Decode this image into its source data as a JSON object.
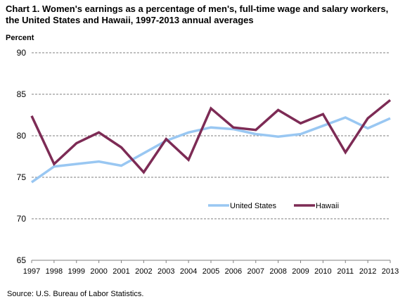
{
  "chart_data": {
    "type": "line",
    "title": "Chart 1. Women's earnings as a percentage of men's, full-time wage and salary workers, the United States and Hawaii, 1997-2013  annual averages",
    "ylabel": "Percent",
    "xlabel": "",
    "ylim": [
      65,
      90
    ],
    "yticks": [
      65,
      70,
      75,
      80,
      85,
      90
    ],
    "grid": true,
    "legend_position": "lower-right",
    "categories": [
      "1997",
      "1998",
      "1999",
      "2000",
      "2001",
      "2002",
      "2003",
      "2004",
      "2005",
      "2006",
      "2007",
      "2008",
      "2009",
      "2010",
      "2011",
      "2012",
      "2013"
    ],
    "series": [
      {
        "name": "United States",
        "color": "#99c7f2",
        "values": [
          74.4,
          76.3,
          76.6,
          76.9,
          76.4,
          77.9,
          79.4,
          80.4,
          81.0,
          80.8,
          80.2,
          79.9,
          80.2,
          81.2,
          82.2,
          80.9,
          82.1
        ]
      },
      {
        "name": "Hawaii",
        "color": "#7d2b55",
        "values": [
          82.4,
          76.6,
          79.1,
          80.4,
          78.6,
          75.6,
          79.6,
          77.1,
          83.3,
          81.0,
          80.7,
          83.1,
          81.5,
          82.6,
          78.0,
          82.1,
          84.3
        ]
      }
    ]
  },
  "source": "Source: U.S.  Bureau of Labor Statistics."
}
